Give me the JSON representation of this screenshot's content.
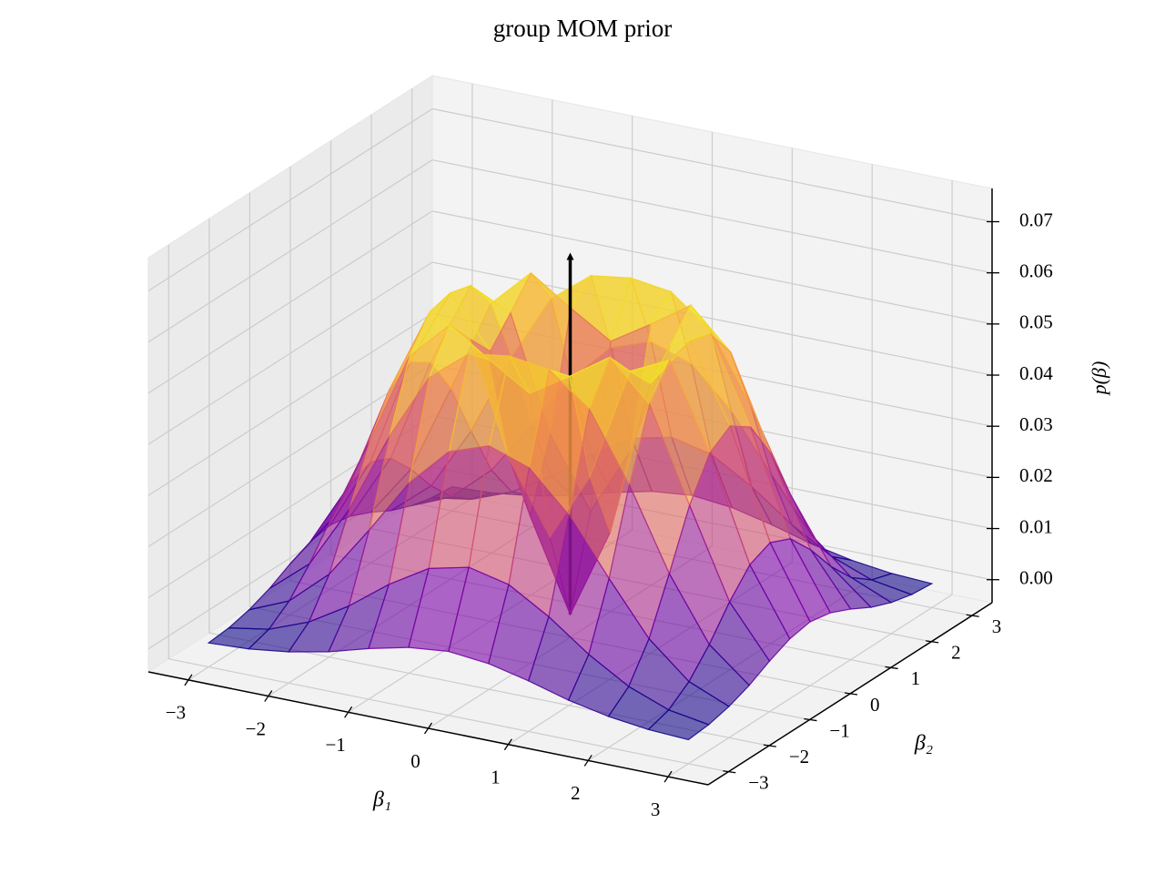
{
  "chart_data": {
    "type": "surface",
    "title": "group MOM prior",
    "xlabel": "β₁",
    "ylabel": "β₂",
    "zlabel": "p(β)",
    "colormap": "plasma",
    "x": [
      -3,
      -2.5,
      -2,
      -1.5,
      -1,
      -0.5,
      0,
      0.5,
      1,
      1.5,
      2,
      2.5,
      3
    ],
    "y": [
      -3,
      -2.5,
      -2,
      -1.5,
      -1,
      -0.5,
      0,
      0.5,
      1,
      1.5,
      2,
      2.5,
      3
    ],
    "z": [
      [
        0.0002,
        0.0006,
        0.0016,
        0.0032,
        0.0054,
        0.0072,
        0.008,
        0.0072,
        0.0054,
        0.0032,
        0.0016,
        0.0006,
        0.0002
      ],
      [
        0.0006,
        0.0019,
        0.0049,
        0.0096,
        0.0154,
        0.0201,
        0.0219,
        0.0201,
        0.0154,
        0.0096,
        0.0049,
        0.0019,
        0.0006
      ],
      [
        0.0016,
        0.0049,
        0.0117,
        0.0219,
        0.0327,
        0.0404,
        0.0431,
        0.0404,
        0.0327,
        0.0219,
        0.0117,
        0.0049,
        0.0016
      ],
      [
        0.0032,
        0.0096,
        0.0219,
        0.0377,
        0.0509,
        0.057,
        0.0581,
        0.057,
        0.0509,
        0.0377,
        0.0219,
        0.0096,
        0.0032
      ],
      [
        0.0054,
        0.0154,
        0.0327,
        0.0509,
        0.0585,
        0.0532,
        0.0483,
        0.0532,
        0.0585,
        0.0509,
        0.0327,
        0.0154,
        0.0054
      ],
      [
        0.0072,
        0.0201,
        0.0404,
        0.057,
        0.0532,
        0.031,
        0.0176,
        0.031,
        0.0532,
        0.057,
        0.0404,
        0.0201,
        0.0072
      ],
      [
        0.008,
        0.0219,
        0.0431,
        0.0581,
        0.0483,
        0.0176,
        0,
        0.0176,
        0.0483,
        0.0581,
        0.0431,
        0.0219,
        0.008
      ],
      [
        0.0072,
        0.0201,
        0.0404,
        0.057,
        0.0532,
        0.031,
        0.0176,
        0.031,
        0.0532,
        0.057,
        0.0404,
        0.0201,
        0.0072
      ],
      [
        0.0054,
        0.0154,
        0.0327,
        0.0509,
        0.0585,
        0.0532,
        0.0483,
        0.0532,
        0.0585,
        0.0509,
        0.0327,
        0.0154,
        0.0054
      ],
      [
        0.0032,
        0.0096,
        0.0219,
        0.0377,
        0.0509,
        0.057,
        0.0581,
        0.057,
        0.0509,
        0.0377,
        0.0219,
        0.0096,
        0.0032
      ],
      [
        0.0016,
        0.0049,
        0.0117,
        0.0219,
        0.0327,
        0.0404,
        0.0431,
        0.0404,
        0.0327,
        0.0219,
        0.0117,
        0.0049,
        0.0016
      ],
      [
        0.0006,
        0.0019,
        0.0049,
        0.0096,
        0.0154,
        0.0201,
        0.0219,
        0.0201,
        0.0154,
        0.0096,
        0.0049,
        0.0019,
        0.0006
      ],
      [
        0.0002,
        0.0006,
        0.0016,
        0.0032,
        0.0054,
        0.0072,
        0.008,
        0.0072,
        0.0054,
        0.0032,
        0.0016,
        0.0006,
        0.0002
      ]
    ],
    "xlim": [
      -3.5,
      3.5
    ],
    "ylim": [
      -3.5,
      3.5
    ],
    "zlim": [
      -0.0045,
      0.0765
    ],
    "xticks": [
      {
        "value": -3,
        "label": "−3"
      },
      {
        "value": -2,
        "label": "−2"
      },
      {
        "value": -1,
        "label": "−1"
      },
      0,
      1,
      2,
      3
    ],
    "yticks": [
      {
        "value": -3,
        "label": "−3"
      },
      {
        "value": -2,
        "label": "−2"
      },
      {
        "value": -1,
        "label": "−1"
      },
      0,
      1,
      2,
      3
    ],
    "zticks": [
      {
        "value": 0,
        "label": "0.00"
      },
      {
        "value": 0.01,
        "label": "0.01"
      },
      {
        "value": 0.02,
        "label": "0.02"
      },
      {
        "value": 0.03,
        "label": "0.03"
      },
      {
        "value": 0.04,
        "label": "0.04"
      },
      {
        "value": 0.05,
        "label": "0.05"
      },
      {
        "value": 0.06,
        "label": "0.06"
      },
      {
        "value": 0.07,
        "label": "0.07"
      }
    ],
    "grid": true,
    "arrow": {
      "x": 0,
      "y": 0,
      "z": [
        0,
        0.07
      ],
      "color": "#000000"
    }
  }
}
